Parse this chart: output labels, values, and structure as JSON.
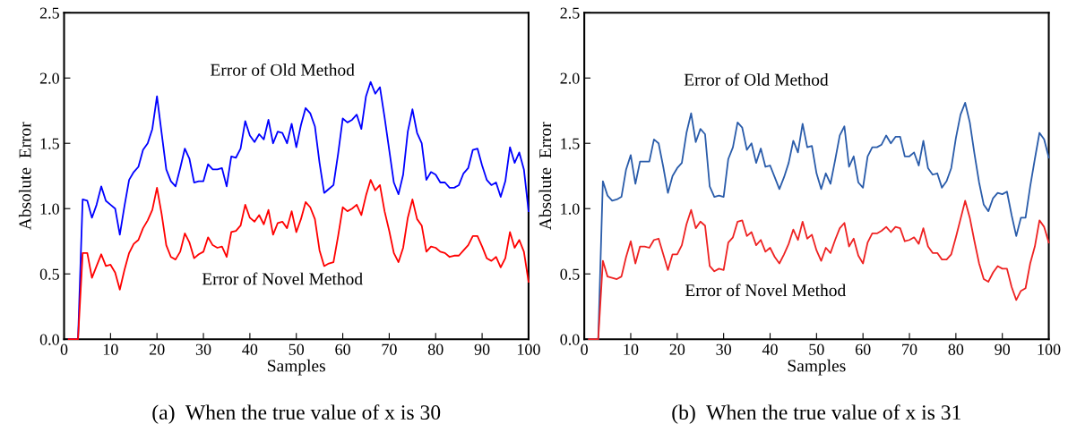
{
  "chart_data": [
    {
      "type": "line",
      "title": "(a)  When the true value of x is 30",
      "xlabel": "Samples",
      "ylabel": "Absolute  Error",
      "x": [
        1,
        2,
        3,
        4,
        5,
        6,
        7,
        8,
        9,
        10,
        11,
        12,
        13,
        14,
        15,
        16,
        17,
        18,
        19,
        20,
        21,
        22,
        23,
        24,
        25,
        26,
        27,
        28,
        29,
        30,
        31,
        32,
        33,
        34,
        35,
        36,
        37,
        38,
        39,
        40,
        41,
        42,
        43,
        44,
        45,
        46,
        47,
        48,
        49,
        50,
        51,
        52,
        53,
        54,
        55,
        56,
        57,
        58,
        59,
        60,
        61,
        62,
        63,
        64,
        65,
        66,
        67,
        68,
        69,
        70,
        71,
        72,
        73,
        74,
        75,
        76,
        77,
        78,
        79,
        80,
        81,
        82,
        83,
        84,
        85,
        86,
        87,
        88,
        89,
        90,
        91,
        92,
        93,
        94,
        95,
        96,
        97,
        98,
        99,
        100
      ],
      "series": [
        {
          "color": "#0000ff",
          "values": [
            0,
            0,
            0,
            1.07,
            1.06,
            0.93,
            1.03,
            1.17,
            1.06,
            1.03,
            1.0,
            0.8,
            1.02,
            1.22,
            1.28,
            1.32,
            1.45,
            1.5,
            1.61,
            1.86,
            1.58,
            1.3,
            1.21,
            1.17,
            1.31,
            1.46,
            1.38,
            1.2,
            1.21,
            1.21,
            1.34,
            1.3,
            1.3,
            1.31,
            1.17,
            1.4,
            1.39,
            1.46,
            1.67,
            1.56,
            1.51,
            1.57,
            1.53,
            1.68,
            1.5,
            1.59,
            1.58,
            1.5,
            1.65,
            1.47,
            1.64,
            1.77,
            1.73,
            1.63,
            1.35,
            1.12,
            1.15,
            1.18,
            1.42,
            1.69,
            1.66,
            1.68,
            1.72,
            1.61,
            1.86,
            1.97,
            1.88,
            1.93,
            1.7,
            1.45,
            1.2,
            1.11,
            1.26,
            1.59,
            1.76,
            1.58,
            1.5,
            1.22,
            1.28,
            1.26,
            1.2,
            1.2,
            1.16,
            1.16,
            1.18,
            1.27,
            1.31,
            1.45,
            1.46,
            1.33,
            1.22,
            1.18,
            1.2,
            1.09,
            1.21,
            1.47,
            1.35,
            1.43,
            1.3,
            0.98
          ]
        },
        {
          "color": "#ff0000",
          "values": [
            0,
            0,
            0,
            0.66,
            0.66,
            0.47,
            0.56,
            0.65,
            0.56,
            0.57,
            0.51,
            0.38,
            0.53,
            0.66,
            0.73,
            0.76,
            0.85,
            0.91,
            0.99,
            1.16,
            0.96,
            0.72,
            0.63,
            0.61,
            0.67,
            0.81,
            0.74,
            0.62,
            0.65,
            0.67,
            0.78,
            0.72,
            0.7,
            0.71,
            0.63,
            0.82,
            0.83,
            0.87,
            1.03,
            0.93,
            0.9,
            0.95,
            0.88,
            0.99,
            0.8,
            0.89,
            0.9,
            0.85,
            0.98,
            0.82,
            0.92,
            1.05,
            1.01,
            0.92,
            0.68,
            0.56,
            0.58,
            0.59,
            0.79,
            1.01,
            0.98,
            1.0,
            1.03,
            0.95,
            1.1,
            1.22,
            1.14,
            1.18,
            0.98,
            0.83,
            0.66,
            0.59,
            0.7,
            0.93,
            1.07,
            0.92,
            0.87,
            0.67,
            0.71,
            0.7,
            0.67,
            0.66,
            0.63,
            0.64,
            0.64,
            0.68,
            0.72,
            0.79,
            0.79,
            0.71,
            0.62,
            0.6,
            0.63,
            0.55,
            0.62,
            0.82,
            0.7,
            0.76,
            0.67,
            0.44
          ]
        }
      ],
      "annotations": [
        "Error of Old Method",
        "Error of Novel Method"
      ],
      "xlim": [
        0,
        100
      ],
      "xticks": [
        0,
        10,
        20,
        30,
        40,
        50,
        60,
        70,
        80,
        90,
        100
      ],
      "ylim": [
        0,
        2.5
      ],
      "yticks": [
        {
          "value": 0,
          "label": "0.0"
        },
        0.5,
        {
          "value": 1,
          "label": "1.0"
        },
        1.5,
        {
          "value": 2,
          "label": "2.0"
        },
        2.5
      ],
      "grid": false,
      "legend": false,
      "marker": "none",
      "line_style": "solid"
    },
    {
      "type": "line",
      "title": "(b)  When the true value of x is 31",
      "xlabel": "Samples",
      "ylabel": "Absolute  Error",
      "x": [
        1,
        2,
        3,
        4,
        5,
        6,
        7,
        8,
        9,
        10,
        11,
        12,
        13,
        14,
        15,
        16,
        17,
        18,
        19,
        20,
        21,
        22,
        23,
        24,
        25,
        26,
        27,
        28,
        29,
        30,
        31,
        32,
        33,
        34,
        35,
        36,
        37,
        38,
        39,
        40,
        41,
        42,
        43,
        44,
        45,
        46,
        47,
        48,
        49,
        50,
        51,
        52,
        53,
        54,
        55,
        56,
        57,
        58,
        59,
        60,
        61,
        62,
        63,
        64,
        65,
        66,
        67,
        68,
        69,
        70,
        71,
        72,
        73,
        74,
        75,
        76,
        77,
        78,
        79,
        80,
        81,
        82,
        83,
        84,
        85,
        86,
        87,
        88,
        89,
        90,
        91,
        92,
        93,
        94,
        95,
        96,
        97,
        98,
        99,
        100
      ],
      "series": [
        {
          "color": "#2a5caa",
          "values": [
            0,
            0,
            0,
            1.21,
            1.1,
            1.06,
            1.07,
            1.09,
            1.3,
            1.41,
            1.19,
            1.36,
            1.36,
            1.36,
            1.53,
            1.5,
            1.32,
            1.12,
            1.25,
            1.31,
            1.35,
            1.58,
            1.73,
            1.51,
            1.61,
            1.57,
            1.17,
            1.09,
            1.1,
            1.09,
            1.38,
            1.47,
            1.66,
            1.62,
            1.45,
            1.5,
            1.35,
            1.46,
            1.32,
            1.33,
            1.24,
            1.15,
            1.24,
            1.35,
            1.52,
            1.43,
            1.65,
            1.47,
            1.48,
            1.27,
            1.15,
            1.27,
            1.19,
            1.37,
            1.56,
            1.63,
            1.32,
            1.4,
            1.2,
            1.16,
            1.4,
            1.47,
            1.47,
            1.49,
            1.56,
            1.5,
            1.55,
            1.55,
            1.4,
            1.4,
            1.43,
            1.33,
            1.52,
            1.31,
            1.26,
            1.27,
            1.16,
            1.21,
            1.31,
            1.54,
            1.72,
            1.81,
            1.66,
            1.42,
            1.2,
            1.03,
            0.98,
            1.08,
            1.12,
            1.11,
            1.13,
            0.95,
            0.79,
            0.93,
            0.93,
            1.17,
            1.38,
            1.58,
            1.53,
            1.39
          ]
        },
        {
          "color": "#ee2222",
          "values": [
            0,
            0,
            0,
            0.6,
            0.48,
            0.47,
            0.46,
            0.48,
            0.63,
            0.75,
            0.58,
            0.71,
            0.71,
            0.7,
            0.76,
            0.77,
            0.65,
            0.53,
            0.65,
            0.65,
            0.72,
            0.88,
            0.99,
            0.85,
            0.9,
            0.87,
            0.56,
            0.52,
            0.54,
            0.53,
            0.74,
            0.78,
            0.9,
            0.91,
            0.79,
            0.82,
            0.72,
            0.76,
            0.67,
            0.7,
            0.63,
            0.58,
            0.65,
            0.73,
            0.84,
            0.76,
            0.9,
            0.77,
            0.8,
            0.68,
            0.6,
            0.7,
            0.66,
            0.76,
            0.85,
            0.89,
            0.71,
            0.77,
            0.64,
            0.58,
            0.74,
            0.81,
            0.81,
            0.83,
            0.86,
            0.82,
            0.86,
            0.85,
            0.75,
            0.76,
            0.78,
            0.73,
            0.85,
            0.71,
            0.66,
            0.66,
            0.61,
            0.61,
            0.65,
            0.78,
            0.92,
            1.06,
            0.93,
            0.75,
            0.58,
            0.46,
            0.44,
            0.51,
            0.56,
            0.54,
            0.54,
            0.4,
            0.3,
            0.37,
            0.39,
            0.58,
            0.71,
            0.91,
            0.86,
            0.74
          ]
        }
      ],
      "annotations": [
        "Error of Old Method",
        "Error of Novel Method"
      ],
      "xlim": [
        0,
        100
      ],
      "xticks": [
        0,
        10,
        20,
        30,
        40,
        50,
        60,
        70,
        80,
        90,
        100
      ],
      "ylim": [
        0,
        2.5
      ],
      "yticks": [
        {
          "value": 0,
          "label": "0.0"
        },
        0.5,
        {
          "value": 1,
          "label": "1.0"
        },
        1.5,
        {
          "value": 2,
          "label": "2.0"
        },
        2.5
      ],
      "grid": false,
      "legend": false,
      "marker": "none",
      "line_style": "solid"
    }
  ]
}
